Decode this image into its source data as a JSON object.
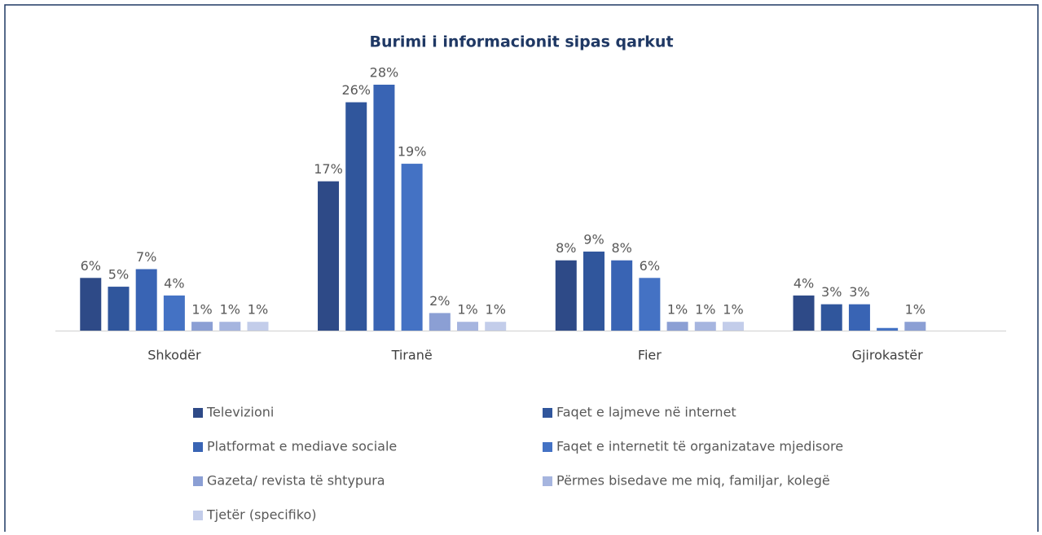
{
  "chart_data": {
    "type": "bar",
    "title": "Burimi i informacionit sipas qarkut",
    "categories": [
      "Shkodër",
      "Tiranë",
      "Fier",
      "Gjirokastër"
    ],
    "series": [
      {
        "name": "Televizioni",
        "color": "#2e4a87",
        "values": [
          6,
          17,
          8,
          4
        ],
        "value_labels": [
          "6%",
          "17%",
          "8%",
          "4%"
        ]
      },
      {
        "name": "Faqet e lajmeve në internet",
        "color": "#30569c",
        "values": [
          5,
          26,
          9,
          3
        ],
        "value_labels": [
          "5%",
          "26%",
          "9%",
          "3%"
        ]
      },
      {
        "name": "Platformat e mediave sociale",
        "color": "#3964b4",
        "values": [
          7,
          28,
          8,
          3
        ],
        "value_labels": [
          "7%",
          "28%",
          "8%",
          "3%"
        ]
      },
      {
        "name": "Faqet e internetit të organizatave mjedisore",
        "color": "#4472c4",
        "values": [
          4,
          19,
          6,
          0.3
        ],
        "value_labels": [
          "4%",
          "19%",
          "6%",
          null
        ]
      },
      {
        "name": "Gazeta/ revista të shtypura",
        "color": "#8b9fd4",
        "values": [
          1,
          2,
          1,
          1
        ],
        "value_labels": [
          "1%",
          "2%",
          "1%",
          "1%"
        ]
      },
      {
        "name": "Përmes bisedave me miq, familjar, kolegë",
        "color": "#a6b5df",
        "values": [
          1,
          1,
          1,
          0
        ],
        "value_labels": [
          "1%",
          "1%",
          "1%",
          null
        ]
      },
      {
        "name": "Tjetër (specifiko)",
        "color": "#c3cdea",
        "values": [
          1,
          1,
          1,
          0
        ],
        "value_labels": [
          "1%",
          "1%",
          "1%",
          null
        ]
      }
    ]
  }
}
